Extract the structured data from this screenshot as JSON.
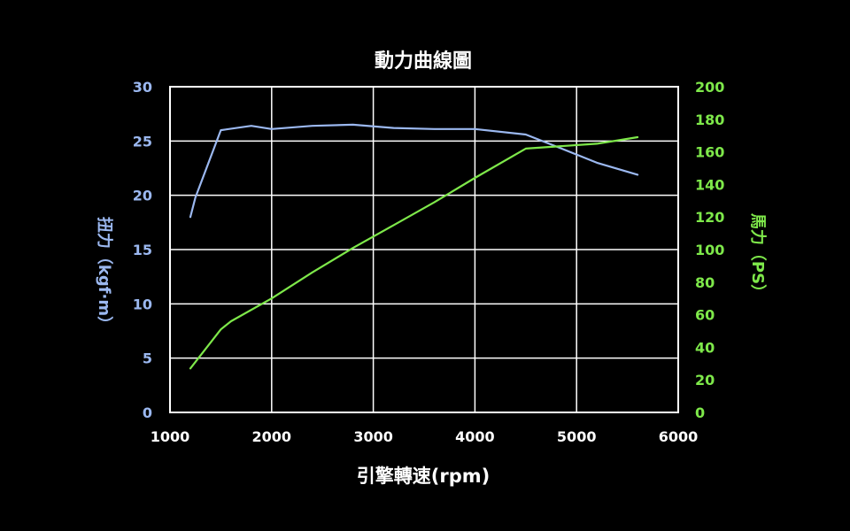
{
  "chart_data": {
    "type": "line",
    "title": "動力曲線圖",
    "xlabel": "引擎轉速(rpm)",
    "ylabel_left": "扭力（kgf·m）",
    "ylabel_right": "馬力（PS）",
    "xlim": [
      1000,
      6000
    ],
    "ylim_left": [
      0,
      30
    ],
    "ylim_right": [
      0,
      200
    ],
    "x_ticks": [
      1000,
      2000,
      3000,
      4000,
      5000,
      6000
    ],
    "y_left_ticks": [
      0,
      5,
      10,
      15,
      20,
      25,
      30
    ],
    "y_right_ticks": [
      0,
      20,
      40,
      60,
      80,
      100,
      120,
      140,
      160,
      180,
      200
    ],
    "grid": true,
    "colors": {
      "torque": "#9bb8f0",
      "power": "#7ee84a",
      "grid": "#ffffff",
      "background": "#000000"
    },
    "series": [
      {
        "axis": "left",
        "x": [
          1200,
          1250,
          1500,
          1800,
          2000,
          2400,
          2800,
          3200,
          3600,
          4000,
          4500,
          4800,
          5200,
          5600
        ],
        "values": [
          18.0,
          19.8,
          26.0,
          26.4,
          26.1,
          26.4,
          26.5,
          26.2,
          26.1,
          26.1,
          25.6,
          24.5,
          23.0,
          21.9
        ]
      },
      {
        "axis": "right",
        "x": [
          1200,
          1500,
          1600,
          2000,
          2400,
          2800,
          3200,
          3600,
          4000,
          4500,
          5200,
          5600
        ],
        "values": [
          27,
          51,
          56,
          70,
          86,
          101,
          115,
          129,
          144,
          162,
          165,
          169
        ]
      }
    ]
  }
}
